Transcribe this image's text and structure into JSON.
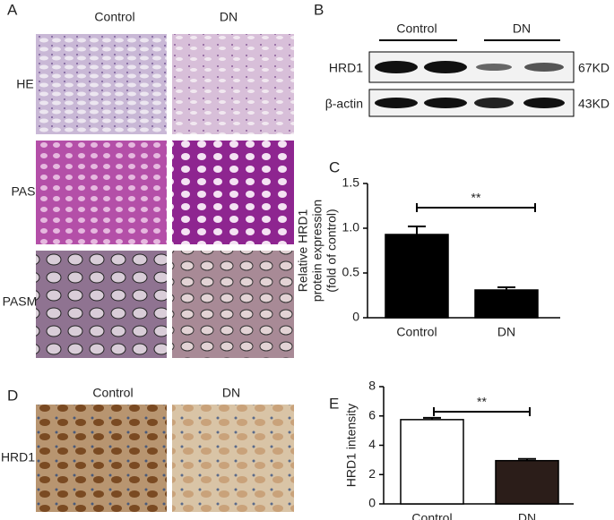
{
  "panel_a": {
    "letter": "A",
    "columns": [
      "Control",
      "DN"
    ],
    "rows": [
      "HE",
      "PAS",
      "PASM"
    ]
  },
  "panel_b": {
    "letter": "B",
    "groups": [
      "Control",
      "DN"
    ],
    "bands": [
      {
        "label": "HRD1",
        "size": "67KD"
      },
      {
        "label": "β-actin",
        "size": "43KD"
      }
    ]
  },
  "panel_d": {
    "letter": "D",
    "columns": [
      "Control",
      "DN"
    ],
    "row": "HRD1"
  },
  "chart_data": [
    {
      "type": "bar",
      "letter": "C",
      "ylabel": [
        "Relative HRD1",
        "protein expression",
        "(fold of control)"
      ],
      "categories": [
        "Control",
        "DN"
      ],
      "values": [
        0.93,
        0.31
      ],
      "errors": [
        0.09,
        0.03
      ],
      "colors": [
        "#000000",
        "#000000"
      ],
      "ylim": [
        0,
        1.5
      ],
      "yticks": [
        0,
        0.5,
        {
          "value": 1,
          "label": "1.0"
        },
        1.5
      ],
      "annotation": "**"
    },
    {
      "type": "bar",
      "letter": "E",
      "ylabel": [
        "HRD1 intensity"
      ],
      "categories": [
        "Control",
        "DN"
      ],
      "values": [
        5.75,
        2.95
      ],
      "errors": [
        0.12,
        0.12
      ],
      "colors": [
        "#ffffff",
        "#2b1d19"
      ],
      "ylim": [
        0,
        8
      ],
      "yticks": [
        0,
        2,
        4,
        6,
        8
      ],
      "annotation": "**"
    }
  ]
}
